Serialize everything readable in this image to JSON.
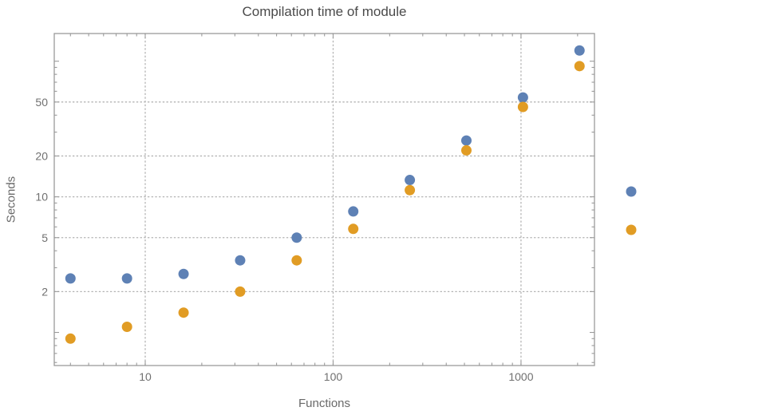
{
  "page": {
    "background": "#ffffff"
  },
  "chart_data": {
    "type": "scatter",
    "title": "Compilation time of module",
    "xlabel": "Functions",
    "ylabel": "Seconds",
    "x_scale": "log",
    "y_scale": "log",
    "xlim": [
      3.28,
      2460
    ],
    "ylim": [
      0.57,
      160
    ],
    "x_ticks": [
      10,
      100,
      1000
    ],
    "x_tick_labels": [
      "10",
      "100",
      "1000"
    ],
    "y_ticks": [
      2,
      5,
      10,
      20,
      50
    ],
    "y_tick_labels": [
      "2",
      "5",
      "10",
      "20",
      "50"
    ],
    "grid": true,
    "x": [
      4,
      8,
      16,
      32,
      64,
      128,
      256,
      512,
      1024,
      2048
    ],
    "series": [
      {
        "name": "blue",
        "color": "#5e81b5",
        "values": [
          2.5,
          2.5,
          2.7,
          3.4,
          5.0,
          7.8,
          13.3,
          26,
          54,
          120
        ]
      },
      {
        "name": "orange",
        "color": "#e19c24",
        "values": [
          0.9,
          1.1,
          1.4,
          2.0,
          3.4,
          5.8,
          11.2,
          22,
          46,
          92
        ]
      }
    ],
    "legend": {
      "position": "right",
      "labels_visible": false
    }
  }
}
